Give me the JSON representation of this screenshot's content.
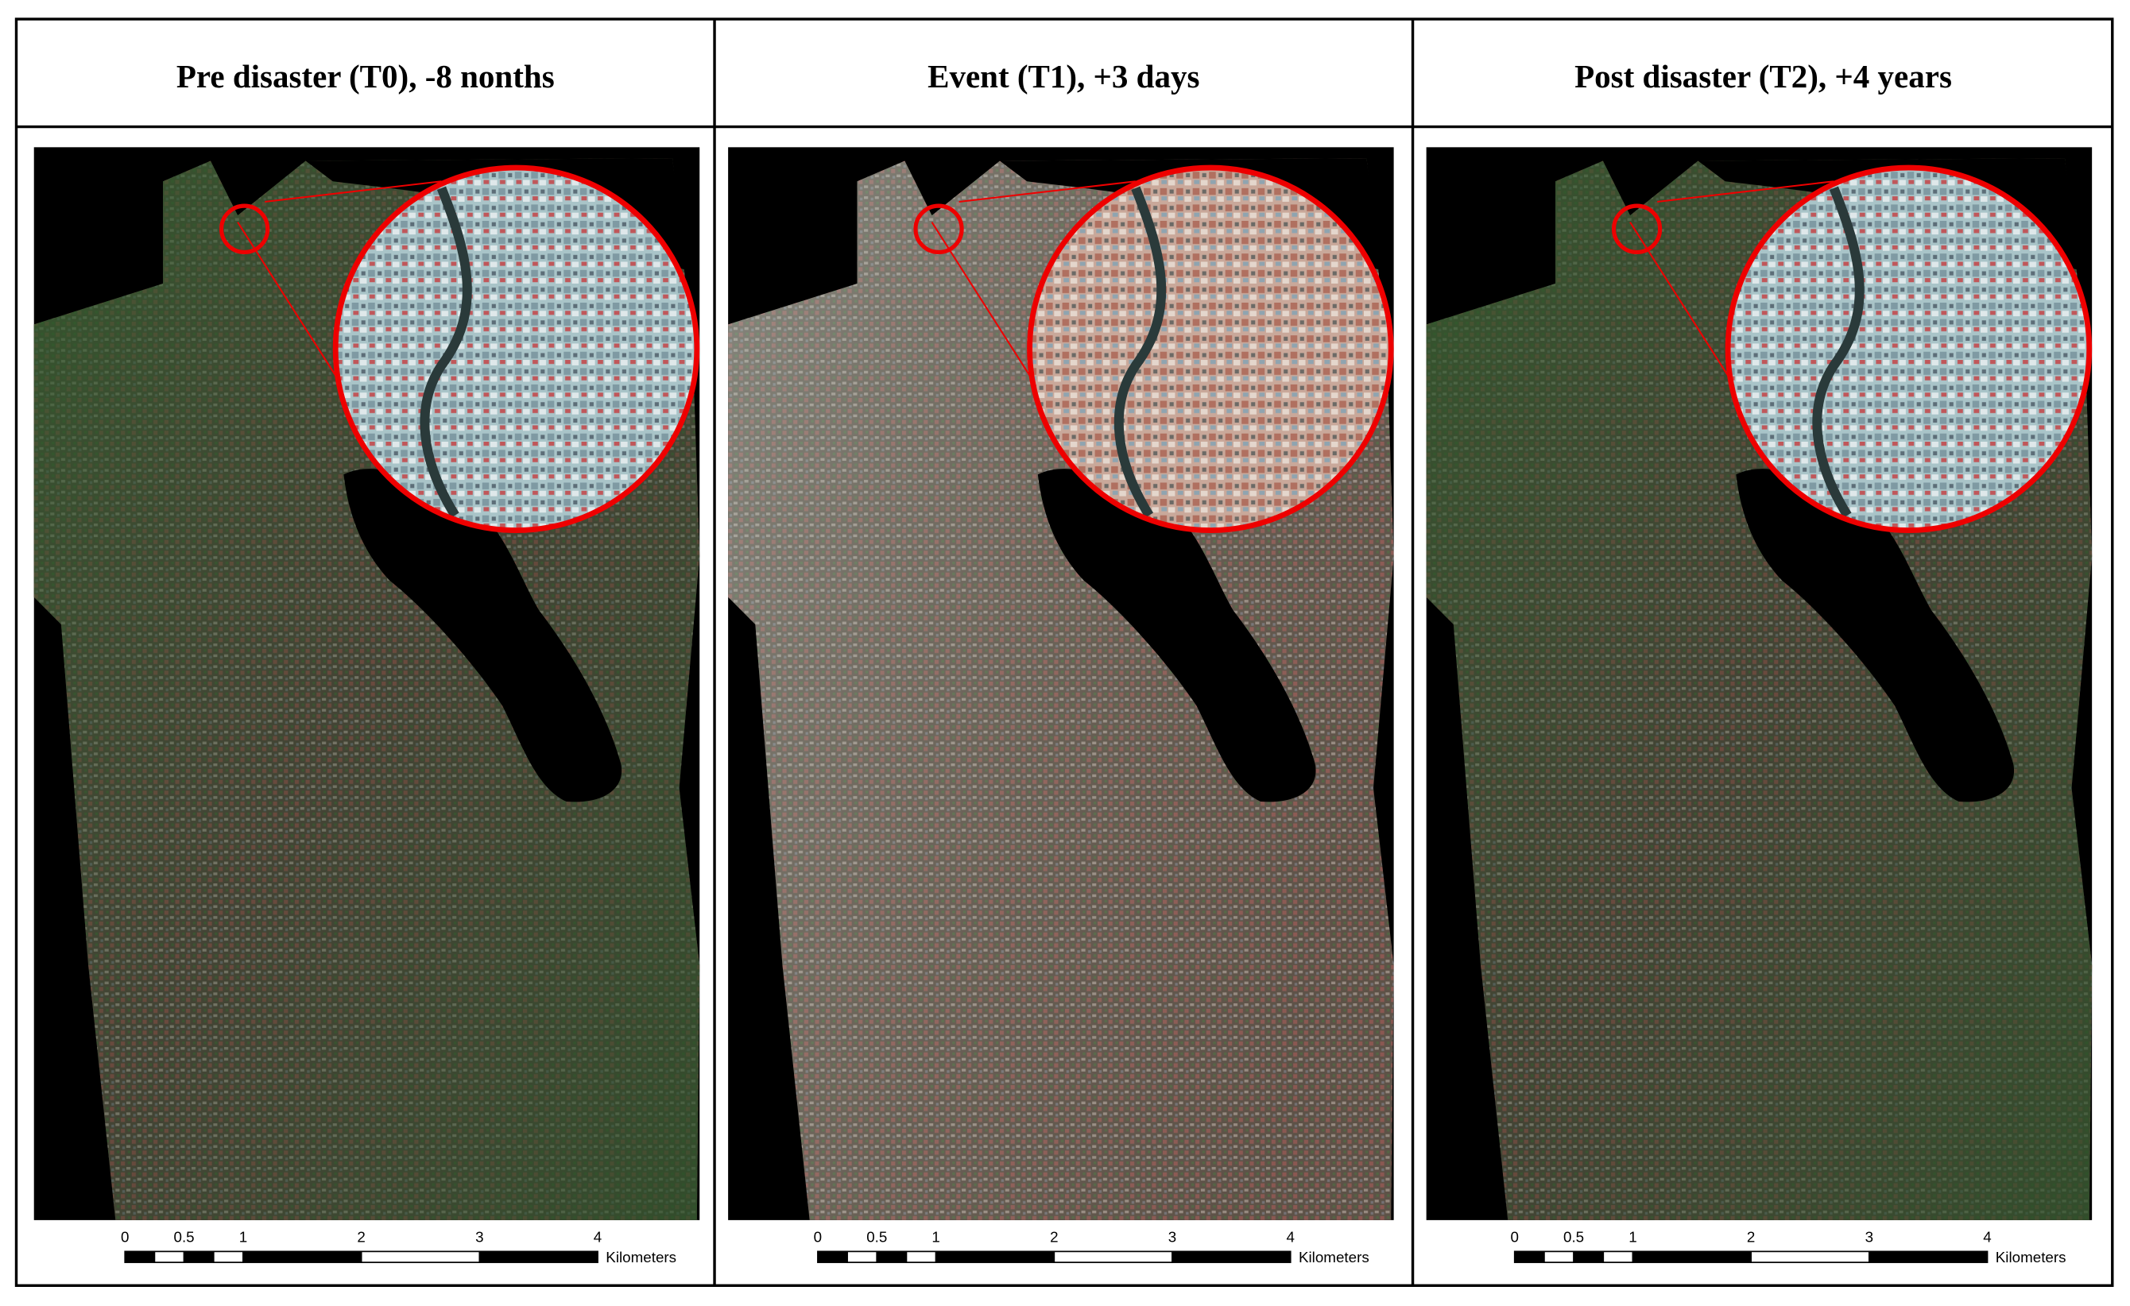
{
  "panels": [
    {
      "title": "Pre disaster (T0), -8 nonths"
    },
    {
      "title": "Event (T1), +3 days"
    },
    {
      "title": "Post disaster (T2), +4 years"
    }
  ],
  "scale_bar": {
    "ticks": [
      0,
      0.5,
      1,
      2,
      3,
      4
    ],
    "unit": "Kilometers"
  }
}
